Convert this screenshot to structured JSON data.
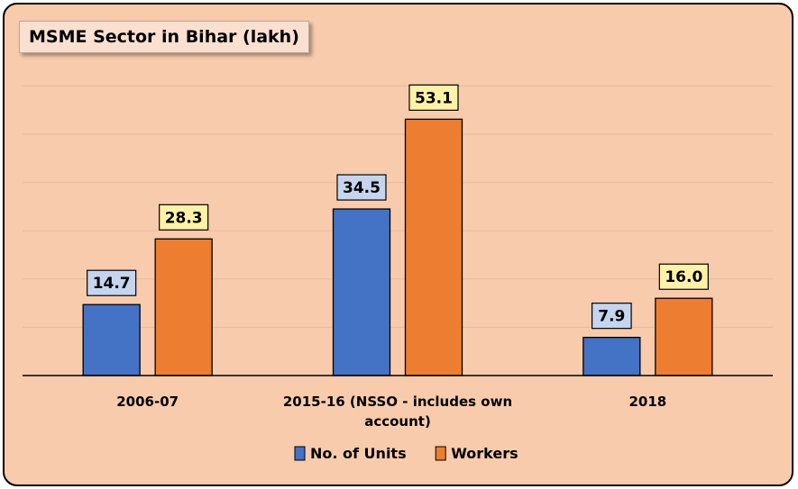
{
  "chart_data": {
    "type": "bar",
    "title": "MSME Sector in Bihar (lakh)",
    "categories": [
      "2006-07",
      "2015-16 (NSSO - includes own account)",
      "2018"
    ],
    "category_lines": [
      [
        "2006-07"
      ],
      [
        "2015-16 (NSSO - includes own",
        "account)"
      ],
      [
        "2018"
      ]
    ],
    "series": [
      {
        "name": "No. of Units",
        "values": [
          14.7,
          34.5,
          7.9
        ],
        "color": "#4472C4",
        "label_bg": "#C5D5EE"
      },
      {
        "name": "Workers",
        "values": [
          28.3,
          53.1,
          16.0
        ],
        "color": "#ED7D31",
        "label_bg": "#FFF2A8"
      }
    ],
    "data_labels": [
      [
        "14.7",
        "34.5",
        "7.9"
      ],
      [
        "28.3",
        "53.1",
        "16.0"
      ]
    ],
    "ylim": [
      0,
      60
    ],
    "grid": true,
    "legend": "bottom",
    "xlabel": "",
    "ylabel": ""
  }
}
